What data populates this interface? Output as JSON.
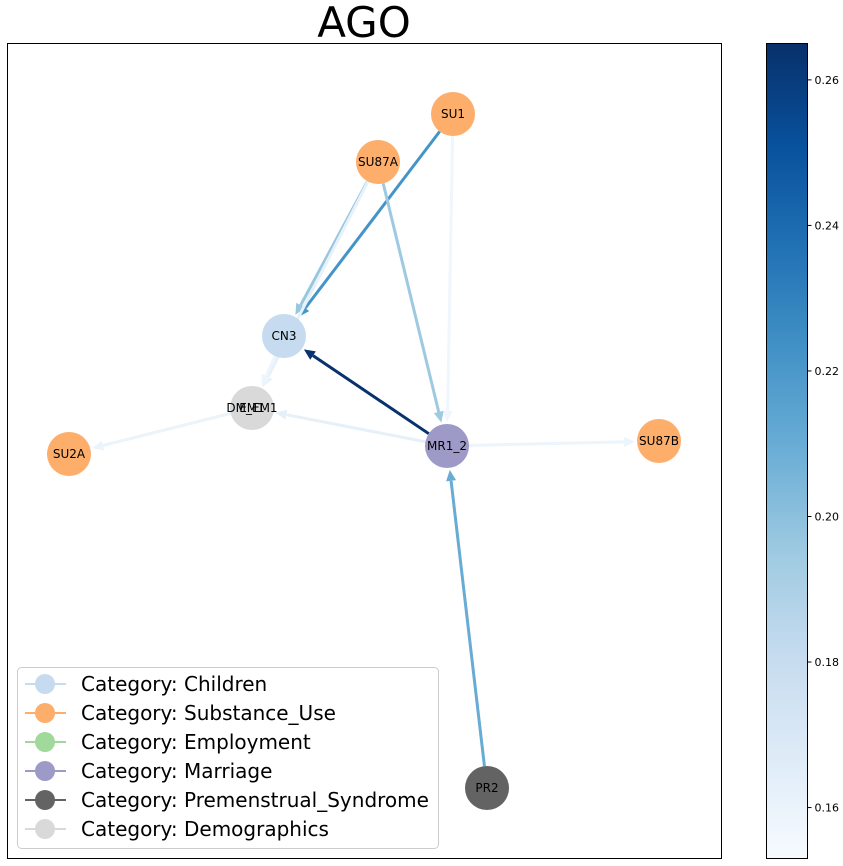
{
  "title": "AGO",
  "nodes": [
    {
      "id": "SU1",
      "label": "SU1",
      "category": "Substance_Use"
    },
    {
      "id": "SU87A",
      "label": "SU87A",
      "category": "Substance_Use"
    },
    {
      "id": "CN3",
      "label": "CN3",
      "category": "Children"
    },
    {
      "id": "DM_EM1",
      "label": "DM_EM1",
      "category": "Demographics",
      "overlap_label": "EM1"
    },
    {
      "id": "SU2A",
      "label": "SU2A",
      "category": "Substance_Use"
    },
    {
      "id": "MR1_2",
      "label": "MR1_2",
      "category": "Marriage"
    },
    {
      "id": "SU87B",
      "label": "SU87B",
      "category": "Substance_Use"
    },
    {
      "id": "PR2",
      "label": "PR2",
      "category": "Premenstrual_Syndrome"
    }
  ],
  "edges": [
    {
      "source": "SU1",
      "target": "CN3",
      "weight": 0.222
    },
    {
      "source": "SU1",
      "target": "MR1_2",
      "weight": 0.157
    },
    {
      "source": "SU87A",
      "target": "CN3",
      "weight": 0.197
    },
    {
      "source": "SU87A",
      "target": "DM_EM1",
      "weight": 0.162
    },
    {
      "source": "SU87A",
      "target": "MR1_2",
      "weight": 0.195
    },
    {
      "source": "MR1_2",
      "target": "CN3",
      "weight": 0.264
    },
    {
      "source": "MR1_2",
      "target": "DM_EM1",
      "weight": 0.163
    },
    {
      "source": "MR1_2",
      "target": "SU87B",
      "weight": 0.159
    },
    {
      "source": "CN3",
      "target": "DM_EM1",
      "weight": 0.158
    },
    {
      "source": "DM_EM1",
      "target": "SU2A",
      "weight": 0.16
    },
    {
      "source": "PR2",
      "target": "MR1_2",
      "weight": 0.21
    }
  ],
  "colorbar": {
    "min": 0.153,
    "max": 0.265,
    "ticks": [
      "0.16",
      "0.18",
      "0.20",
      "0.22",
      "0.24",
      "0.26"
    ],
    "tick_values": [
      0.16,
      0.18,
      0.2,
      0.22,
      0.24,
      0.26
    ]
  },
  "legend": [
    {
      "label": "Category: Children",
      "color": "#c6dbef"
    },
    {
      "label": "Category: Substance_Use",
      "color": "#fdae6b"
    },
    {
      "label": "Category: Employment",
      "color": "#a1d99b"
    },
    {
      "label": "Category: Marriage",
      "color": "#9e9ac8"
    },
    {
      "label": "Category: Premenstrual_Syndrome",
      "color": "#636363"
    },
    {
      "label": "Category: Demographics",
      "color": "#d9d9d9"
    }
  ],
  "category_colors": {
    "Children": "#c6dbef",
    "Substance_Use": "#fdae6b",
    "Employment": "#a1d99b",
    "Marriage": "#9e9ac8",
    "Premenstrual_Syndrome": "#636363",
    "Demographics": "#d9d9d9"
  }
}
